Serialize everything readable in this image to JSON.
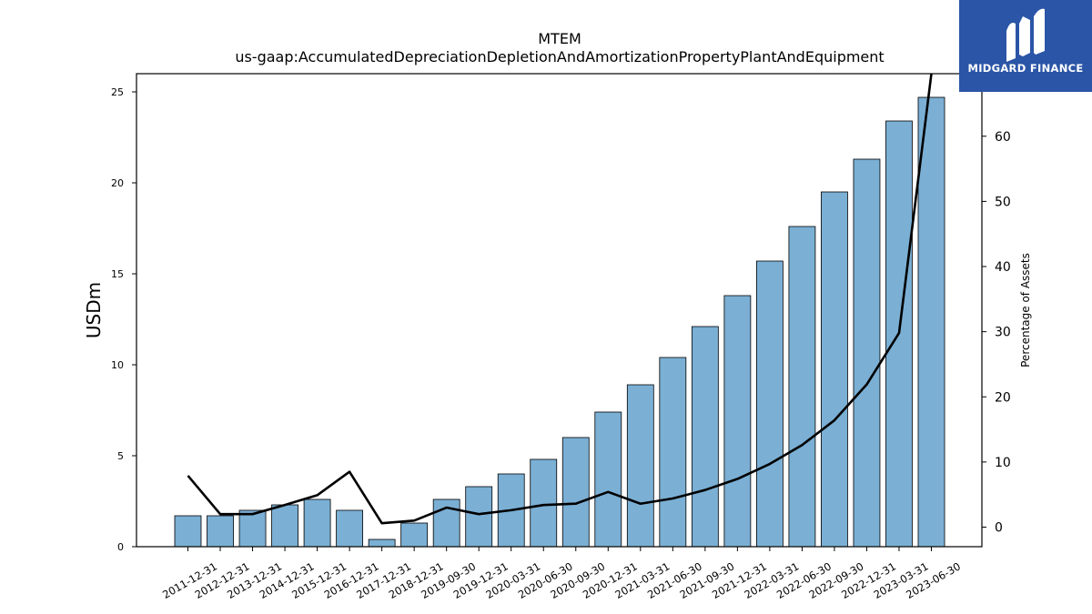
{
  "brand": {
    "name": "MIDGARD FINANCE",
    "bg_color": "#2b55a6"
  },
  "chart_data": {
    "type": "bar",
    "title": "MTEM",
    "subtitle": "us-gaap:AccumulatedDepreciationDepletionAndAmortizationPropertyPlantAndEquipment",
    "ylabel": "USDm",
    "y2label": "Percentage of Assets",
    "ylim": [
      0,
      26
    ],
    "y2lim": [
      -3,
      69.6
    ],
    "yticks": [
      0,
      5,
      10,
      15,
      20,
      25
    ],
    "y2ticks": [
      0,
      10,
      20,
      30,
      40,
      50,
      60
    ],
    "bar_color": "#7bafd4",
    "line_color": "#000000",
    "categories": [
      "2011-12-31",
      "2012-12-31",
      "2013-12-31",
      "2014-12-31",
      "2015-12-31",
      "2016-12-31",
      "2017-12-31",
      "2018-12-31",
      "2019-09-30",
      "2019-12-31",
      "2020-03-31",
      "2020-06-30",
      "2020-09-30",
      "2020-12-31",
      "2021-03-31",
      "2021-06-30",
      "2021-09-30",
      "2021-12-31",
      "2022-03-31",
      "2022-06-30",
      "2022-09-30",
      "2022-12-31",
      "2023-03-31",
      "2023-06-30"
    ],
    "series": [
      {
        "values": [
          1.7,
          1.7,
          2.0,
          2.3,
          2.6,
          2.0,
          0.4,
          1.3,
          2.6,
          3.3,
          4.0,
          4.8,
          6.0,
          7.4,
          8.9,
          10.4,
          12.1,
          13.8,
          15.7,
          17.6,
          19.5,
          21.3,
          23.4,
          24.7
        ]
      },
      {
        "axis": "right",
        "values": [
          7.9,
          2.0,
          2.0,
          3.4,
          4.9,
          8.5,
          0.6,
          1.0,
          3.0,
          2.0,
          2.6,
          3.4,
          3.6,
          5.4,
          3.6,
          4.4,
          5.7,
          7.4,
          9.7,
          12.6,
          16.4,
          21.9,
          29.8,
          69.6
        ]
      }
    ]
  }
}
